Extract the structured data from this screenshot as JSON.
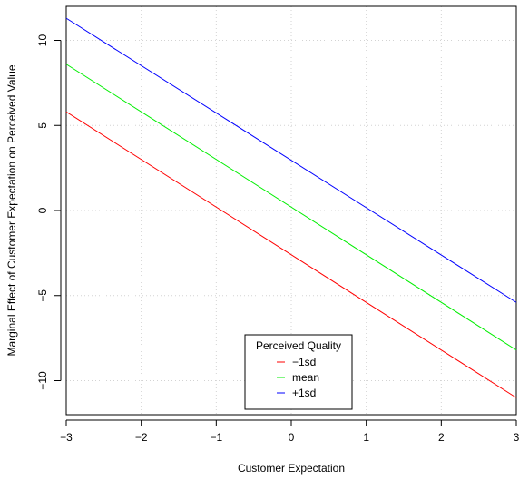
{
  "chart_data": {
    "type": "line",
    "title": "",
    "xlabel": "Customer Expectation",
    "ylabel": "Marginal Effect of Customer Expectation on Perceived Value",
    "xlim": [
      -3,
      3
    ],
    "ylim": [
      -12,
      12
    ],
    "x_ticks": [
      -3,
      -2,
      -1,
      0,
      1,
      2,
      3
    ],
    "x_tick_labels": [
      "−3",
      "−2",
      "−1",
      "0",
      "1",
      "2",
      "3"
    ],
    "y_ticks": [
      -10,
      -5,
      0,
      5,
      10
    ],
    "y_tick_labels": [
      "−10",
      "−5",
      "0",
      "5",
      "10"
    ],
    "grid": true,
    "legend": {
      "title": "Perceived Quality",
      "placement": "bottom-center"
    },
    "series": [
      {
        "name": "−1sd",
        "color": "#ff0000",
        "x": [
          -3,
          3
        ],
        "y": [
          5.8,
          -11.0
        ]
      },
      {
        "name": "mean",
        "color": "#00ee00",
        "x": [
          -3,
          3
        ],
        "y": [
          8.6,
          -8.2
        ]
      },
      {
        "name": "+1sd",
        "color": "#0000ff",
        "x": [
          -3,
          3
        ],
        "y": [
          11.3,
          -5.4
        ]
      }
    ]
  }
}
